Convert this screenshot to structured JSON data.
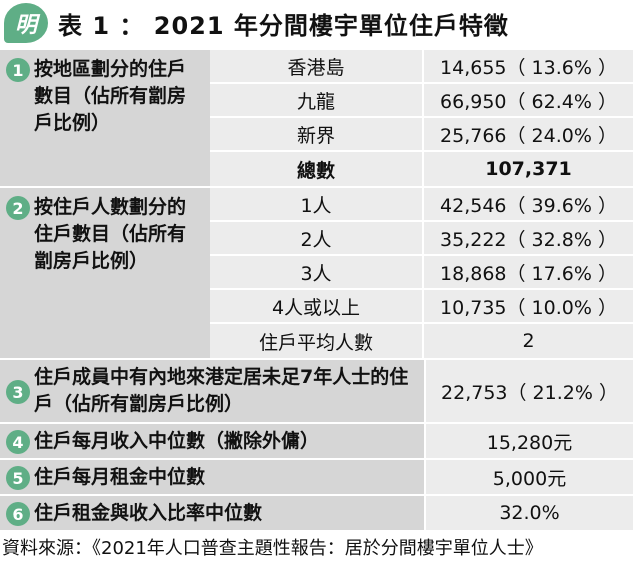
{
  "header": {
    "logo_text": "明",
    "title": "表 1 ： 2021 年分間樓宇單位住戶特徵"
  },
  "sections": [
    {
      "number": "1",
      "label": "按地區劃分的住戶數目（佔所有劏房戶比例）",
      "rows": [
        {
          "a": "香港島",
          "b": "14,655（ 13.6% ）"
        },
        {
          "a": "九龍",
          "b": "66,950（ 62.4% ）"
        },
        {
          "a": "新界",
          "b": "25,766（ 24.0% ）"
        },
        {
          "a": "總數",
          "b": "107,371"
        }
      ]
    },
    {
      "number": "2",
      "label": "按住戶人數劃分的住戶數目（佔所有劏房戶比例）",
      "rows": [
        {
          "a": "1人",
          "b": "42,546（ 39.6% ）"
        },
        {
          "a": "2人",
          "b": "35,222（ 32.8% ）"
        },
        {
          "a": "3人",
          "b": "18,868（ 17.6% ）"
        },
        {
          "a": "4人或以上",
          "b": "10,735（ 10.0% ）"
        },
        {
          "a": "住戶平均人數",
          "b": "2"
        }
      ]
    }
  ],
  "wide_rows": [
    {
      "number": "3",
      "label": "住戶成員中有內地來港定居未足7年人士的住戶（佔所有劏房戶比例）",
      "value": "22,753（ 21.2% ）"
    },
    {
      "number": "4",
      "label": "住戶每月收入中位數（撇除外傭）",
      "value": "15,280元"
    },
    {
      "number": "5",
      "label": "住戶每月租金中位數",
      "value": "5,000元"
    },
    {
      "number": "6",
      "label": "住戶租金與收入比率中位數",
      "value": "32.0%"
    }
  ],
  "source": "資料來源：《2021年人口普查主題性報告：居於分間樓宇單位人士》"
}
